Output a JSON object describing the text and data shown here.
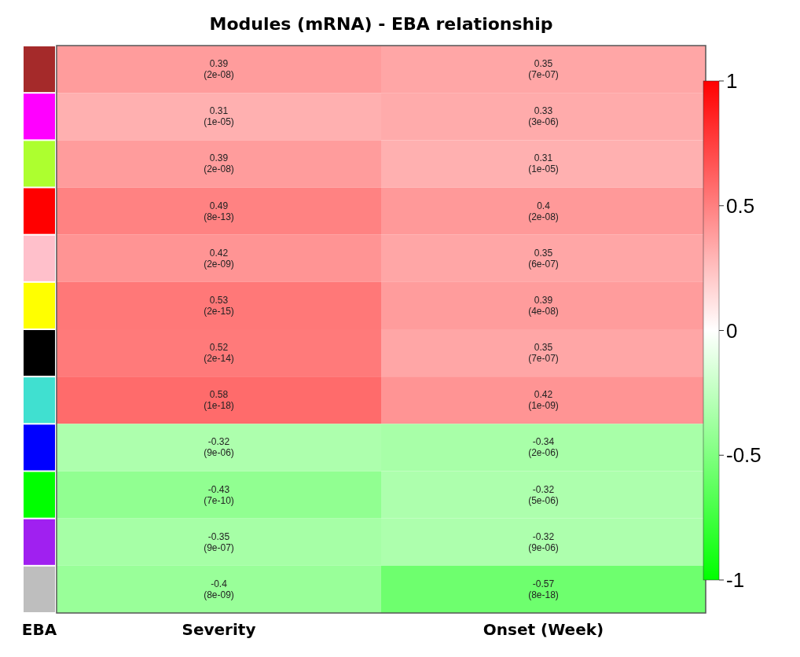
{
  "chart_data": {
    "type": "heatmap",
    "title": "Modules (mRNA) - EBA relationship",
    "ylabel": "EBA",
    "categories": [
      "Severity",
      "Onset (Week)"
    ],
    "y_categories": [
      null,
      null,
      null,
      null,
      null,
      null,
      null,
      null,
      null,
      null,
      null,
      null
    ],
    "colors": [
      "#a52a2a",
      "#ff00ff",
      "#adff2f",
      "#ff0000",
      "#ffc0cb",
      "#ffff00",
      "#000000",
      "#40e0d0",
      "#0000ff",
      "#00ff00",
      "#a020f0",
      "#bebebe"
    ],
    "cells": [
      [
        0.39,
        0.35
      ],
      [
        0.31,
        0.33
      ],
      [
        0.39,
        0.31
      ],
      [
        0.49,
        0.4
      ],
      [
        0.42,
        0.35
      ],
      [
        0.53,
        0.39
      ],
      [
        0.52,
        0.35
      ],
      [
        0.58,
        0.42
      ],
      [
        -0.32,
        -0.34
      ],
      [
        -0.43,
        -0.32
      ],
      [
        -0.35,
        -0.32
      ],
      [
        -0.4,
        -0.57
      ]
    ],
    "cell_labels": [
      [
        "0.39\n(2e-08)",
        "0.35\n(7e-07)"
      ],
      [
        "0.31\n(1e-05)",
        "0.33\n(3e-06)"
      ],
      [
        "0.39\n(2e-08)",
        "0.31\n(1e-05)"
      ],
      [
        "0.49\n(8e-13)",
        "0.4\n(2e-08)"
      ],
      [
        "0.42\n(2e-09)",
        "0.35\n(6e-07)"
      ],
      [
        "0.53\n(2e-15)",
        "0.39\n(4e-08)"
      ],
      [
        "0.52\n(2e-14)",
        "0.35\n(7e-07)"
      ],
      [
        "0.58\n(1e-18)",
        "0.42\n(1e-09)"
      ],
      [
        "-0.32\n(9e-06)",
        "-0.34\n(2e-06)"
      ],
      [
        "-0.43\n(7e-10)",
        "-0.32\n(5e-06)"
      ],
      [
        "-0.35\n(9e-07)",
        "-0.32\n(9e-06)"
      ],
      [
        "-0.4\n(8e-09)",
        "-0.57\n(8e-18)"
      ]
    ],
    "clim": [
      -1,
      1
    ],
    "cticks": [
      1,
      0.5,
      0,
      -0.5,
      -1
    ]
  }
}
